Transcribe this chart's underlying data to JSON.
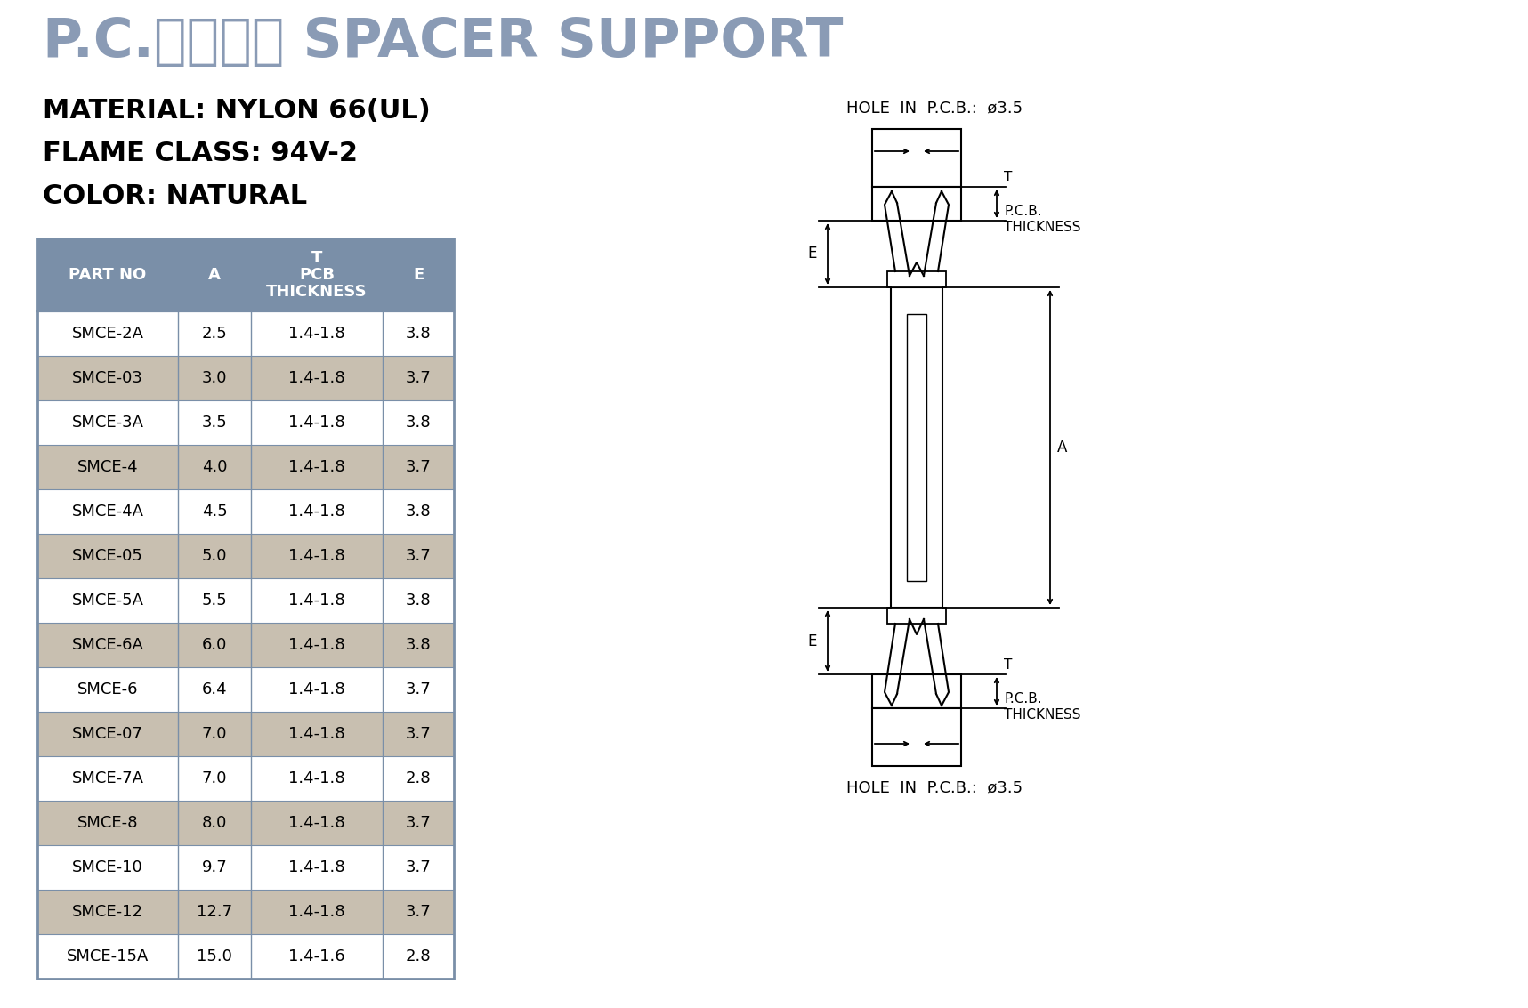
{
  "title": "P.C.板间隔柱 SPACER SUPPORT",
  "title_color": "#8a9bb5",
  "material_lines": [
    "MATERIAL: NYLON 66(UL)",
    "FLAME CLASS: 94V-2",
    "COLOR: NATURAL"
  ],
  "header_bg": "#7a8fa8",
  "row_bg_odd": "#ffffff",
  "row_bg_even": "#c8bfb0",
  "table_border_color": "#7a8fa8",
  "rows": [
    [
      "SMCE-2A",
      "2.5",
      "1.4-1.8",
      "3.8"
    ],
    [
      "SMCE-03",
      "3.0",
      "1.4-1.8",
      "3.7"
    ],
    [
      "SMCE-3A",
      "3.5",
      "1.4-1.8",
      "3.8"
    ],
    [
      "SMCE-4",
      "4.0",
      "1.4-1.8",
      "3.7"
    ],
    [
      "SMCE-4A",
      "4.5",
      "1.4-1.8",
      "3.8"
    ],
    [
      "SMCE-05",
      "5.0",
      "1.4-1.8",
      "3.7"
    ],
    [
      "SMCE-5A",
      "5.5",
      "1.4-1.8",
      "3.8"
    ],
    [
      "SMCE-6A",
      "6.0",
      "1.4-1.8",
      "3.8"
    ],
    [
      "SMCE-6",
      "6.4",
      "1.4-1.8",
      "3.7"
    ],
    [
      "SMCE-07",
      "7.0",
      "1.4-1.8",
      "3.7"
    ],
    [
      "SMCE-7A",
      "7.0",
      "1.4-1.8",
      "2.8"
    ],
    [
      "SMCE-8",
      "8.0",
      "1.4-1.8",
      "3.7"
    ],
    [
      "SMCE-10",
      "9.7",
      "1.4-1.8",
      "3.7"
    ],
    [
      "SMCE-12",
      "12.7",
      "1.4-1.8",
      "3.7"
    ],
    [
      "SMCE-15A",
      "15.0",
      "1.4-1.6",
      "2.8"
    ]
  ],
  "bg_color": "#ffffff",
  "text_color": "#000000"
}
